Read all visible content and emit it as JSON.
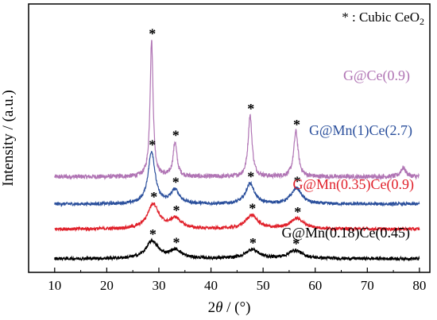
{
  "chart_data": {
    "type": "line",
    "xlabel_prefix": "2",
    "xlabel_italic": "θ",
    "xlabel_suffix": " / (°)",
    "ylabel": "Intensity / (a.u.)",
    "xlim": [
      5,
      82
    ],
    "x_ticks": [
      10,
      20,
      30,
      40,
      50,
      60,
      70,
      80
    ],
    "yticks_shown": false,
    "legend": {
      "text": "* : Cubic CeO",
      "subscript": "2",
      "placement": "top-right"
    },
    "marker_symbol": "*",
    "series": [
      {
        "name": "G@Ce(0.9)",
        "color": "#b074b4",
        "baseline": 1.8,
        "noise": 0.05,
        "peaks": [
          [
            28.6,
            3.0,
            0.35
          ],
          [
            33.1,
            0.75,
            0.45
          ],
          [
            47.5,
            1.35,
            0.45
          ],
          [
            56.3,
            1.0,
            0.5
          ],
          [
            76.9,
            0.2,
            0.6
          ]
        ],
        "markers": [
          28.6,
          33.1,
          47.5,
          56.3
        ]
      },
      {
        "name": "G@Mn(1)Ce(2.7)",
        "color": "#2a4f9c",
        "baseline": 1.2,
        "noise": 0.035,
        "peaks": [
          [
            28.6,
            1.15,
            0.8
          ],
          [
            33.1,
            0.3,
            1.0
          ],
          [
            47.5,
            0.45,
            1.0
          ],
          [
            56.4,
            0.35,
            1.2
          ]
        ],
        "markers": [
          28.6,
          33.1,
          47.5,
          56.4
        ]
      },
      {
        "name": "G@Mn(0.35)Ce(0.9)",
        "color": "#e0202a",
        "baseline": 0.65,
        "noise": 0.035,
        "peaks": [
          [
            28.9,
            0.55,
            1.3
          ],
          [
            33.2,
            0.22,
            1.3
          ],
          [
            47.8,
            0.3,
            1.4
          ],
          [
            56.5,
            0.23,
            1.6
          ]
        ],
        "markers": [
          28.9,
          33.2,
          47.8,
          56.5
        ]
      },
      {
        "name": "G@Mn(0.18)Ce(0.45)",
        "color": "#000000",
        "baseline": 0.0,
        "noise": 0.035,
        "peaks": [
          [
            28.7,
            0.38,
            1.4
          ],
          [
            33.2,
            0.18,
            1.4
          ],
          [
            47.9,
            0.2,
            1.5
          ],
          [
            56.2,
            0.18,
            1.6
          ]
        ],
        "markers": [
          28.7,
          33.2,
          47.9,
          56.2
        ]
      }
    ],
    "ylim": [
      -0.3,
      5.6
    ]
  }
}
